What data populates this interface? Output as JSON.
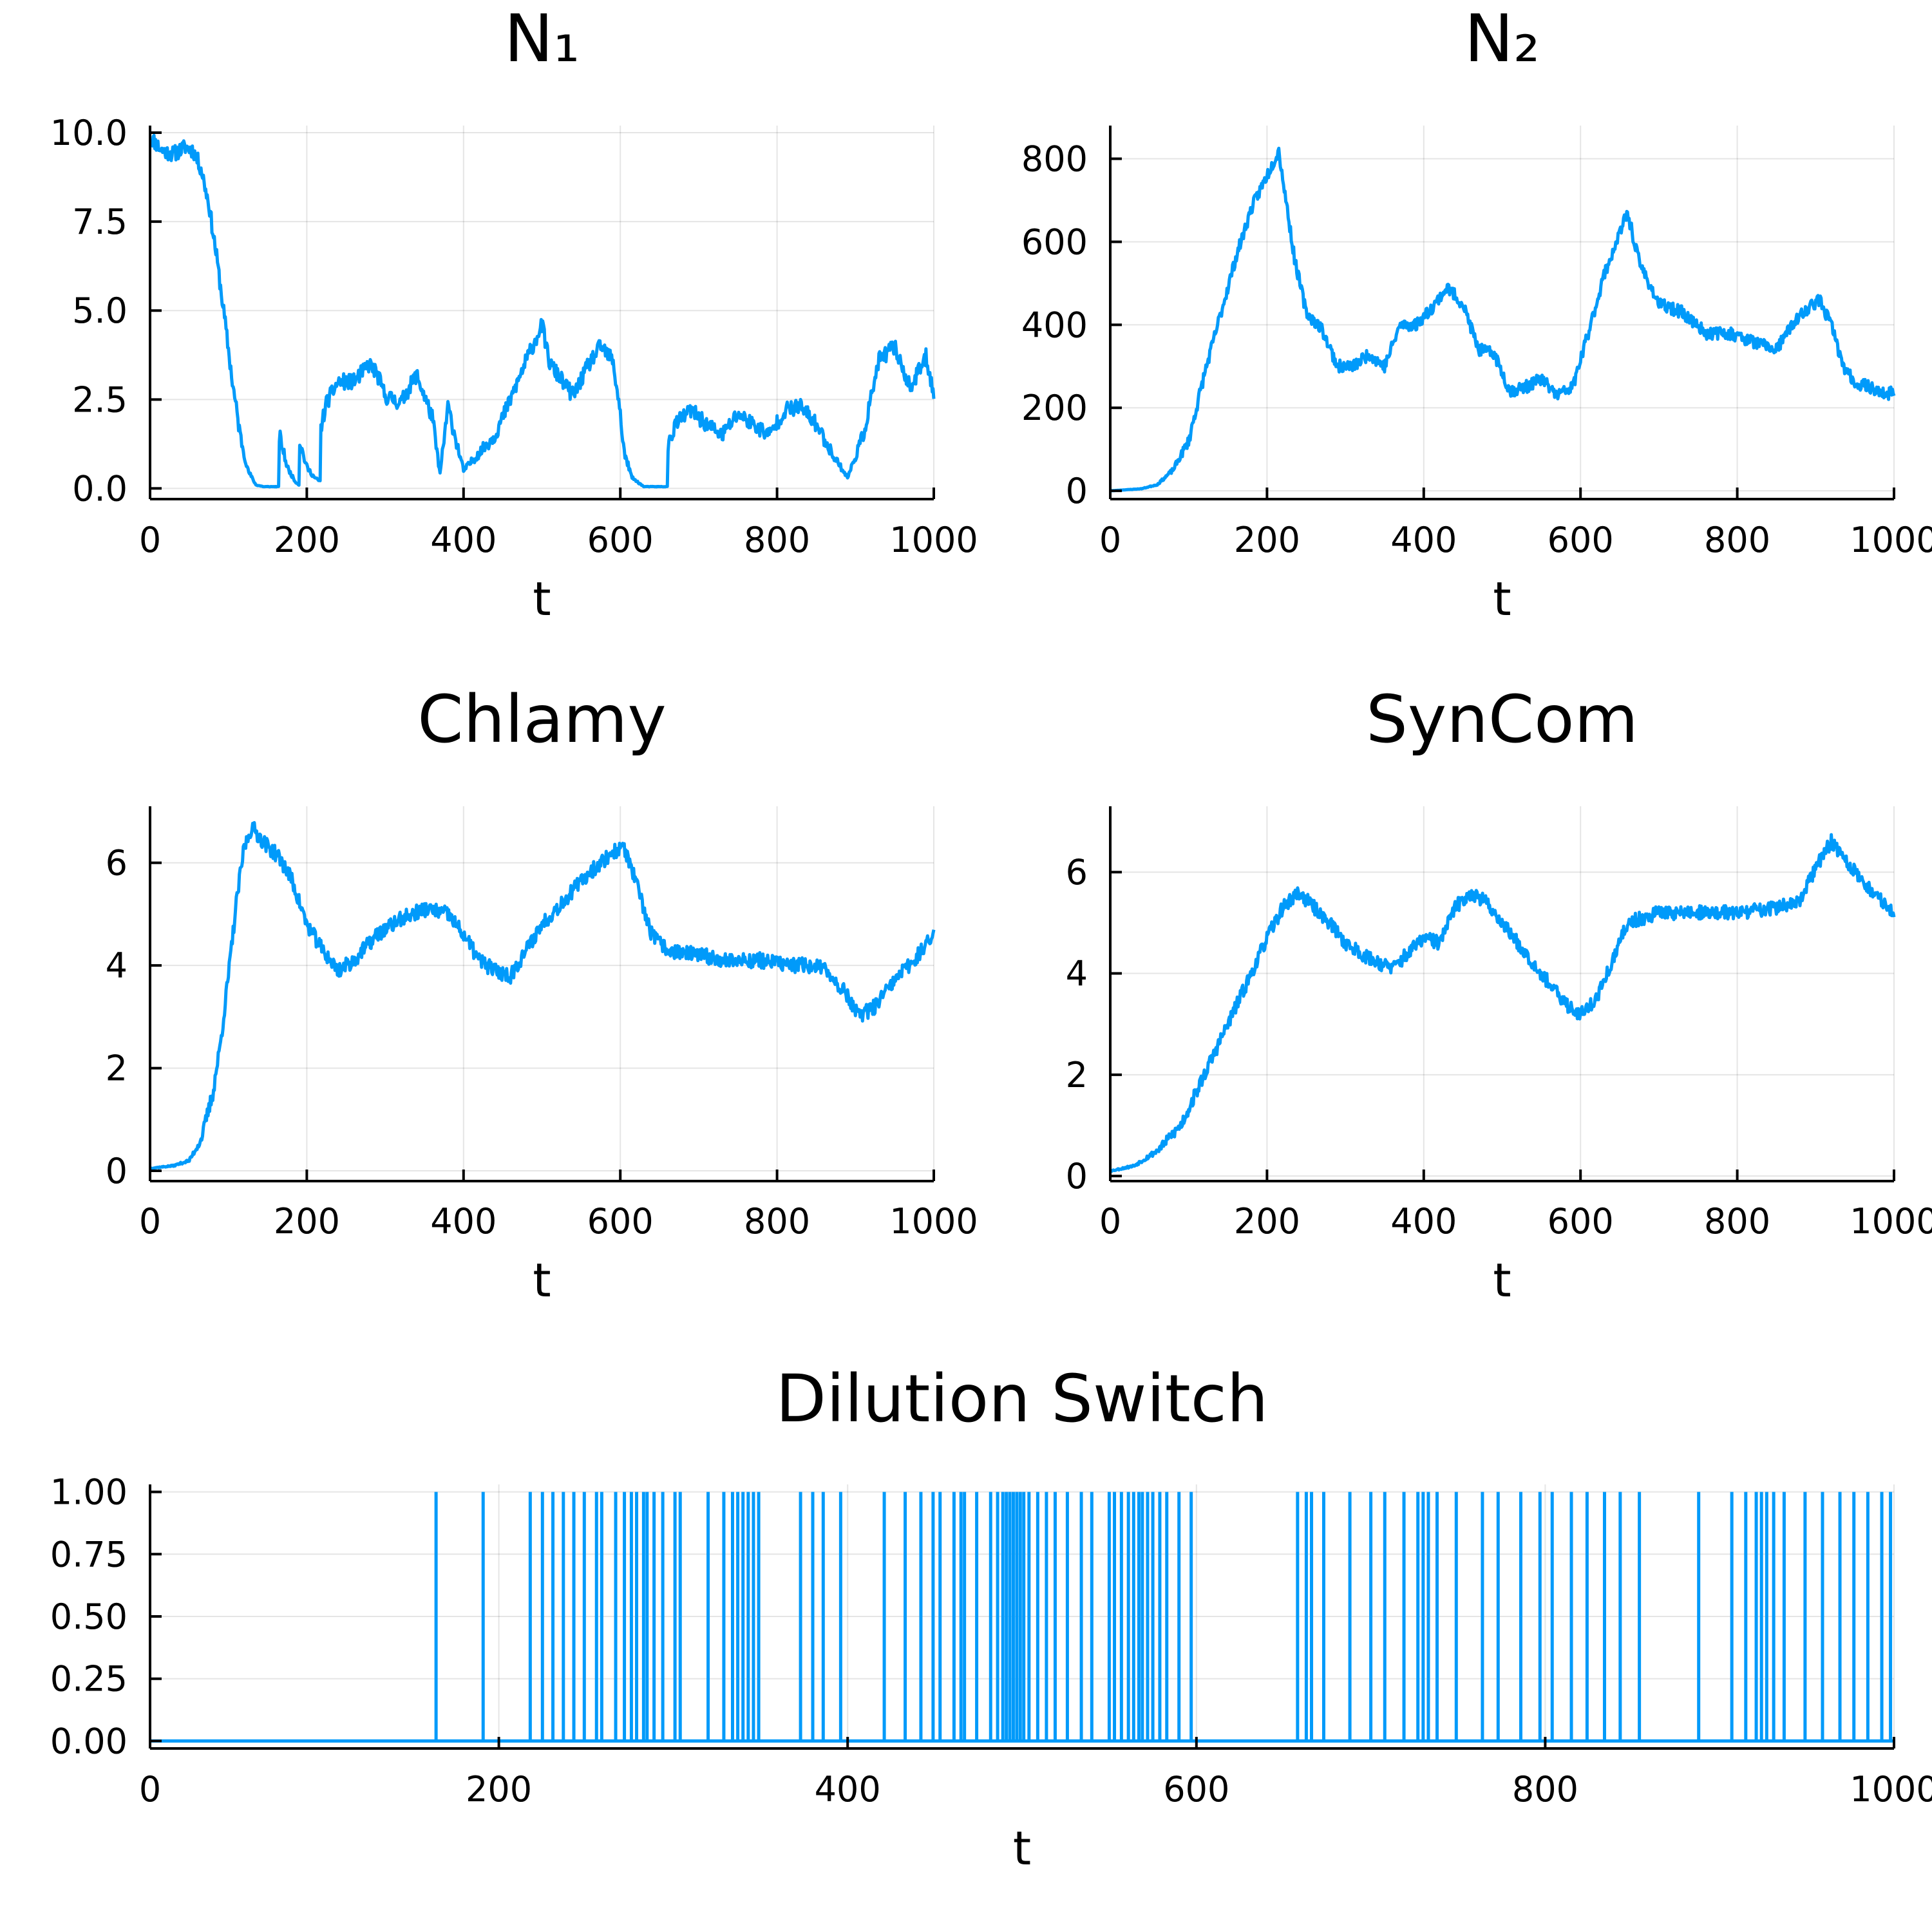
{
  "figure": {
    "line_color": "#009AFA",
    "grid": true
  },
  "chart_data": [
    {
      "type": "line",
      "title": "N₁",
      "xlabel": "t",
      "ylabel": "",
      "xlim": [
        0,
        1000
      ],
      "ylim": [
        -0.3,
        10.2
      ],
      "xticks": [
        0,
        200,
        400,
        600,
        800,
        1000
      ],
      "xtick_labels": [
        "0",
        "200",
        "400",
        "600",
        "800",
        "1000"
      ],
      "yticks": [
        0,
        2.5,
        5,
        7.5,
        10
      ],
      "ytick_labels": [
        "0.0",
        "2.5",
        "5.0",
        "7.5",
        "10.0"
      ],
      "noise": 0.45,
      "seed": 11,
      "series": [
        {
          "x": [
            0,
            15,
            30,
            45,
            55,
            65,
            75,
            85,
            95,
            105,
            115,
            125,
            135,
            145,
            160,
            164,
            165,
            175,
            185,
            190,
            191,
            200,
            210,
            217,
            218,
            225,
            240,
            260,
            280,
            290,
            300,
            320,
            340,
            360,
            370,
            380,
            390,
            400,
            420,
            440,
            460,
            480,
            500,
            510,
            520,
            540,
            560,
            575,
            590,
            598,
            605,
            615,
            630,
            645,
            660,
            661,
            670,
            690,
            710,
            730,
            750,
            770,
            790,
            810,
            830,
            850,
            870,
            890,
            910,
            930,
            950,
            970,
            990,
            1000
          ],
          "y": [
            9.9,
            9.5,
            9.4,
            9.6,
            9.5,
            9.0,
            8.0,
            6.5,
            4.8,
            3.0,
            1.5,
            0.5,
            0.1,
            0.05,
            0.05,
            0.05,
            1.5,
            0.6,
            0.2,
            0.1,
            1.3,
            0.6,
            0.3,
            0.2,
            1.7,
            2.4,
            3.0,
            3.0,
            3.5,
            3.2,
            2.6,
            2.4,
            3.2,
            2.0,
            0.4,
            2.3,
            1.4,
            0.5,
            1.0,
            1.5,
            2.5,
            3.6,
            4.6,
            3.5,
            3.2,
            2.6,
            3.5,
            4.0,
            3.6,
            2.5,
            1.0,
            0.3,
            0.05,
            0.05,
            0.05,
            1.2,
            1.8,
            2.2,
            1.8,
            1.5,
            2.1,
            1.8,
            1.5,
            2.2,
            2.3,
            1.8,
            1.0,
            0.3,
            1.5,
            3.6,
            4.0,
            2.8,
            3.7,
            2.7
          ]
        }
      ]
    },
    {
      "type": "line",
      "title": "N₂",
      "xlabel": "t",
      "ylabel": "",
      "xlim": [
        0,
        1000
      ],
      "ylim": [
        -20,
        880
      ],
      "xticks": [
        0,
        200,
        400,
        600,
        800,
        1000
      ],
      "xtick_labels": [
        "0",
        "200",
        "400",
        "600",
        "800",
        "1000"
      ],
      "yticks": [
        0,
        200,
        400,
        600,
        800
      ],
      "ytick_labels": [
        "0",
        "200",
        "400",
        "600",
        "800"
      ],
      "noise": 30,
      "seed": 23,
      "series": [
        {
          "x": [
            0,
            40,
            60,
            80,
            100,
            120,
            140,
            160,
            180,
            200,
            215,
            225,
            235,
            250,
            270,
            290,
            310,
            330,
            350,
            370,
            390,
            410,
            430,
            450,
            470,
            490,
            510,
            530,
            550,
            570,
            590,
            610,
            630,
            650,
            660,
            675,
            700,
            730,
            760,
            790,
            820,
            850,
            870,
            890,
            905,
            920,
            935,
            950,
            970,
            990,
            1000
          ],
          "y": [
            0,
            5,
            15,
            50,
            120,
            280,
            420,
            560,
            680,
            760,
            820,
            690,
            560,
            430,
            390,
            300,
            300,
            330,
            300,
            400,
            400,
            440,
            490,
            450,
            340,
            330,
            240,
            250,
            270,
            230,
            250,
            380,
            520,
            620,
            670,
            550,
            450,
            430,
            380,
            380,
            360,
            340,
            400,
            440,
            460,
            400,
            300,
            260,
            250,
            230,
            240
          ]
        }
      ]
    },
    {
      "type": "line",
      "title": "Chlamy",
      "xlabel": "t",
      "ylabel": "",
      "xlim": [
        0,
        1000
      ],
      "ylim": [
        -0.2,
        7.1
      ],
      "xticks": [
        0,
        200,
        400,
        600,
        800,
        1000
      ],
      "xtick_labels": [
        "0",
        "200",
        "400",
        "600",
        "800",
        "1000"
      ],
      "yticks": [
        0,
        2,
        4,
        6
      ],
      "ytick_labels": [
        "0",
        "2",
        "4",
        "6"
      ],
      "noise": 0.3,
      "seed": 37,
      "series": [
        {
          "x": [
            0,
            30,
            50,
            65,
            80,
            90,
            100,
            110,
            120,
            130,
            145,
            165,
            180,
            200,
            220,
            240,
            260,
            290,
            320,
            350,
            380,
            400,
            420,
            440,
            460,
            480,
            500,
            530,
            560,
            590,
            605,
            620,
            640,
            660,
            700,
            740,
            780,
            820,
            850,
            870,
            890,
            905,
            925,
            950,
            980,
            1000
          ],
          "y": [
            0.05,
            0.1,
            0.2,
            0.6,
            1.5,
            2.5,
            3.8,
            5.2,
            6.3,
            6.7,
            6.4,
            6.1,
            5.7,
            4.8,
            4.3,
            3.9,
            4.1,
            4.6,
            4.9,
            5.1,
            5.0,
            4.6,
            4.1,
            3.9,
            3.8,
            4.3,
            4.8,
            5.3,
            5.8,
            6.2,
            6.3,
            5.6,
            4.6,
            4.3,
            4.2,
            4.1,
            4.1,
            4.0,
            4.0,
            3.8,
            3.4,
            3.0,
            3.2,
            3.7,
            4.2,
            4.6
          ]
        }
      ]
    },
    {
      "type": "line",
      "title": "SynCom",
      "xlabel": "t",
      "ylabel": "",
      "xlim": [
        0,
        1000
      ],
      "ylim": [
        -0.1,
        7.3
      ],
      "xticks": [
        0,
        200,
        400,
        600,
        800,
        1000
      ],
      "xtick_labels": [
        "0",
        "200",
        "400",
        "600",
        "800",
        "1000"
      ],
      "yticks": [
        0,
        2,
        4,
        6
      ],
      "ytick_labels": [
        "0",
        "2",
        "4",
        "6"
      ],
      "noise": 0.28,
      "seed": 53,
      "series": [
        {
          "x": [
            0,
            30,
            60,
            90,
            120,
            150,
            180,
            200,
            220,
            240,
            260,
            280,
            300,
            330,
            360,
            380,
            400,
            420,
            440,
            460,
            480,
            500,
            520,
            540,
            560,
            580,
            600,
            620,
            640,
            660,
            700,
            750,
            800,
            850,
            880,
            900,
            920,
            940,
            960,
            980,
            1000
          ],
          "y": [
            0.1,
            0.2,
            0.5,
            1.0,
            2.0,
            3.0,
            4.0,
            4.7,
            5.3,
            5.6,
            5.3,
            5.0,
            4.6,
            4.3,
            4.1,
            4.4,
            4.7,
            4.6,
            5.3,
            5.6,
            5.4,
            5.0,
            4.6,
            4.2,
            3.8,
            3.4,
            3.2,
            3.5,
            4.2,
            5.0,
            5.2,
            5.2,
            5.2,
            5.3,
            5.4,
            6.1,
            6.6,
            6.2,
            5.8,
            5.5,
            5.2
          ]
        }
      ]
    },
    {
      "type": "line",
      "title": "Dilution Switch",
      "xlabel": "t",
      "ylabel": "",
      "xlim": [
        0,
        1000
      ],
      "ylim": [
        -0.03,
        1.03
      ],
      "xticks": [
        0,
        200,
        400,
        600,
        800,
        1000
      ],
      "xtick_labels": [
        "0",
        "200",
        "400",
        "600",
        "800",
        "1000"
      ],
      "yticks": [
        0,
        0.25,
        0.5,
        0.75,
        1
      ],
      "ytick_labels": [
        "0.00",
        "0.25",
        "0.50",
        "0.75",
        "1.00"
      ],
      "baseline": 0,
      "pulse_value": 1,
      "pulse_times": [
        164,
        191,
        218,
        225,
        231,
        237,
        243,
        249,
        256,
        259,
        267,
        272,
        276,
        279,
        283,
        285,
        289,
        294,
        301,
        304,
        320,
        329,
        334,
        337,
        340,
        343,
        346,
        349,
        373,
        380,
        386,
        396,
        421,
        433,
        442,
        449,
        453,
        461,
        465,
        467,
        474,
        482,
        486,
        489,
        491,
        493,
        495,
        497,
        499,
        501,
        504,
        509,
        514,
        519,
        526,
        534,
        540,
        550,
        553,
        557,
        561,
        564,
        567,
        569,
        572,
        575,
        579,
        583,
        590,
        597,
        658,
        663,
        666,
        673,
        688,
        700,
        708,
        719,
        727,
        730,
        733,
        738,
        749,
        764,
        773,
        786,
        797,
        804,
        815,
        824,
        834,
        843,
        854,
        888,
        907,
        915,
        921,
        924,
        927,
        931,
        937,
        949,
        959,
        969,
        977,
        985,
        993,
        998
      ]
    }
  ]
}
